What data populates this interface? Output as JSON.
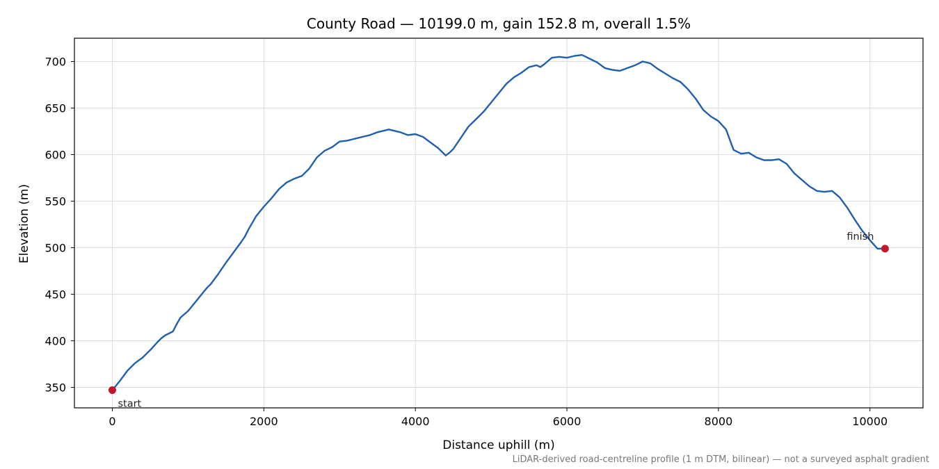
{
  "chart_data": {
    "type": "line",
    "title": "County Road — 10199.0 m, gain 152.8 m, overall 1.5%",
    "xlabel": "Distance uphill (m)",
    "ylabel": "Elevation (m)",
    "xlim": [
      -500,
      10700
    ],
    "ylim": [
      328,
      725
    ],
    "xticks": [
      0,
      2000,
      4000,
      6000,
      8000,
      10000
    ],
    "xtick_labels": [
      "0",
      "2000",
      "4000",
      "6000",
      "8000",
      "10000"
    ],
    "yticks": [
      350,
      400,
      450,
      500,
      550,
      600,
      650,
      700
    ],
    "ytick_labels": [
      "350",
      "400",
      "450",
      "500",
      "550",
      "600",
      "650",
      "700"
    ],
    "grid": true,
    "footnote": "LiDAR-derived road-centreline profile (1 m DTM, bilinear) — not a surveyed asphalt gradient",
    "series": [
      {
        "color": "#1f5fb0",
        "x": [
          0,
          100,
          200,
          300,
          400,
          500,
          600,
          650,
          700,
          800,
          850,
          900,
          1000,
          1100,
          1200,
          1250,
          1300,
          1400,
          1500,
          1600,
          1700,
          1750,
          1800,
          1900,
          2000,
          2100,
          2200,
          2300,
          2400,
          2500,
          2600,
          2700,
          2800,
          2900,
          3000,
          3100,
          3200,
          3300,
          3400,
          3500,
          3600,
          3650,
          3700,
          3800,
          3900,
          4000,
          4100,
          4200,
          4300,
          4400,
          4450,
          4500,
          4600,
          4700,
          4800,
          4900,
          5000,
          5100,
          5200,
          5300,
          5400,
          5500,
          5600,
          5650,
          5700,
          5800,
          5900,
          6000,
          6100,
          6200,
          6250,
          6300,
          6400,
          6500,
          6600,
          6700,
          6800,
          6900,
          7000,
          7100,
          7200,
          7300,
          7400,
          7500,
          7600,
          7700,
          7800,
          7900,
          8000,
          8100,
          8200,
          8300,
          8400,
          8500,
          8600,
          8700,
          8800,
          8900,
          9000,
          9100,
          9200,
          9300,
          9400,
          9500,
          9600,
          9700,
          9800,
          9900,
          10000,
          10100,
          10199
        ],
        "values": [
          347,
          357,
          368,
          376,
          382,
          390,
          399,
          403,
          406,
          410,
          418,
          425,
          432,
          442,
          452,
          457,
          461,
          472,
          484,
          495,
          506,
          512,
          520,
          534,
          544,
          553,
          563,
          570,
          574,
          577,
          585,
          597,
          604,
          608,
          614,
          615,
          617,
          619,
          621,
          624,
          626,
          627,
          626,
          624,
          621,
          622,
          619,
          613,
          607,
          599,
          602,
          606,
          618,
          630,
          638,
          646,
          656,
          666,
          676,
          683,
          688,
          694,
          696,
          694,
          697,
          704,
          705,
          704,
          706,
          707,
          705,
          703,
          699,
          693,
          691,
          690,
          693,
          696,
          700,
          698,
          692,
          687,
          682,
          678,
          670,
          660,
          648,
          641,
          636,
          627,
          605,
          601,
          602,
          597,
          594,
          594,
          595,
          590,
          580,
          573,
          566,
          561,
          560,
          561,
          554,
          543,
          530,
          518,
          508,
          499,
          499
        ]
      }
    ],
    "markers": [
      {
        "label": "start",
        "x": 0,
        "y": 347,
        "color": "#c0182a"
      },
      {
        "label": "finish",
        "x": 10199,
        "y": 499,
        "color": "#c0182a"
      }
    ]
  }
}
